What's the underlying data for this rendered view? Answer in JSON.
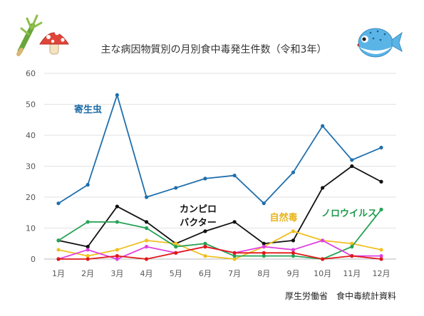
{
  "title": "主な病因物質別の月別食中毒発生件数（令和3年）",
  "source": "厚生労働省　食中毒統計資料",
  "icons": {
    "left": "vegetable-and-mushroom-icon",
    "right": "pufferfish-icon"
  },
  "chart_data": {
    "type": "line",
    "categories": [
      "1月",
      "2月",
      "3月",
      "4月",
      "5月",
      "6月",
      "7月",
      "8月",
      "9月",
      "10月",
      "11月",
      "12月"
    ],
    "ylim": [
      0,
      60
    ],
    "yticks": [
      0,
      10,
      20,
      30,
      40,
      50,
      60
    ],
    "grid": true,
    "series": [
      {
        "name": "寄生虫",
        "label_lines": [
          "寄生虫"
        ],
        "color": "#1f6fad",
        "label_color": "#1a6aa6",
        "values": [
          18,
          24,
          53,
          20,
          23,
          26,
          27,
          18,
          28,
          43,
          32,
          36
        ]
      },
      {
        "name": "カンピロバクター",
        "label_lines": [
          "カンピロ",
          "バクター"
        ],
        "color": "#111111",
        "label_color": "#111111",
        "values": [
          6,
          4,
          17,
          12,
          5,
          9,
          12,
          5,
          6,
          23,
          30,
          25
        ]
      },
      {
        "name": "自然毒",
        "label_lines": [
          "自然毒"
        ],
        "color": "#f0c020",
        "label_color": "#e8b41c",
        "values": [
          3,
          1,
          3,
          6,
          5,
          1,
          0,
          4,
          9,
          6,
          5,
          3
        ]
      },
      {
        "name": "ノロウイルス",
        "label_lines": [
          "ノロウイルス"
        ],
        "color": "#26a356",
        "label_color": "#1f9a4c",
        "values": [
          6,
          12,
          12,
          10,
          4,
          5,
          1,
          1,
          1,
          0,
          4,
          16
        ]
      },
      {
        "name": "",
        "label_lines": [],
        "color": "#e040e0",
        "label_color": "#e040e0",
        "values": [
          0,
          3,
          0,
          4,
          2,
          4,
          2,
          4,
          3,
          6,
          1,
          1
        ]
      },
      {
        "name": "",
        "label_lines": [],
        "color": "#e01818",
        "label_color": "#e01818",
        "values": [
          0,
          0,
          1,
          0,
          2,
          4,
          2,
          2,
          2,
          0,
          1,
          0
        ]
      }
    ]
  }
}
